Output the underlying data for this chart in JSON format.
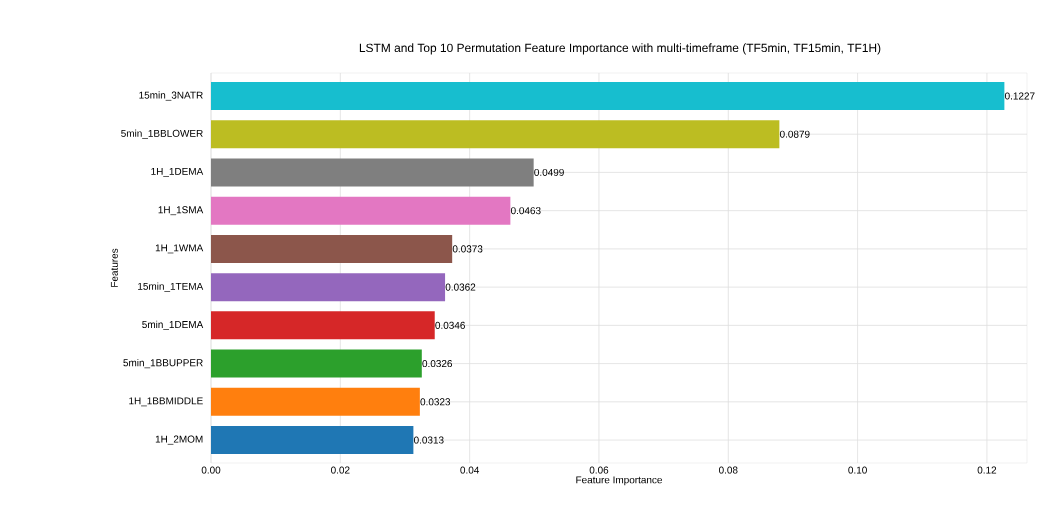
{
  "chart_data": {
    "type": "bar",
    "orientation": "horizontal",
    "title": "LSTM and Top 10 Permutation Feature Importance with multi-timeframe (TF5min, TF15min, TF1H)",
    "xlabel": "Feature Importance",
    "ylabel": "Features",
    "categories": [
      "15min_3NATR",
      "5min_1BBLOWER",
      "1H_1DEMA",
      "1H_1SMA",
      "1H_1WMA",
      "15min_1TEMA",
      "5min_1DEMA",
      "5min_1BBUPPER",
      "1H_1BBMIDDLE",
      "1H_2MOM"
    ],
    "values": [
      0.1227,
      0.0879,
      0.0499,
      0.0463,
      0.0373,
      0.0362,
      0.0346,
      0.0326,
      0.0323,
      0.0313
    ],
    "colors": [
      "#17becf",
      "#bcbd22",
      "#7f7f7f",
      "#e377c2",
      "#8c564b",
      "#9467bd",
      "#d62728",
      "#2ca02c",
      "#ff7f0e",
      "#1f77b4"
    ],
    "xlim": [
      0,
      0.1262
    ],
    "xticks": [
      {
        "value": 0,
        "label": "0.00"
      },
      {
        "value": 0.02,
        "label": "0.02"
      },
      {
        "value": 0.04,
        "label": "0.04"
      },
      {
        "value": 0.06,
        "label": "0.06"
      },
      {
        "value": 0.08,
        "label": "0.08"
      },
      {
        "value": 0.1,
        "label": "0.10"
      },
      {
        "value": 0.12,
        "label": "0.12"
      }
    ],
    "grid": true,
    "data_labels": true
  }
}
